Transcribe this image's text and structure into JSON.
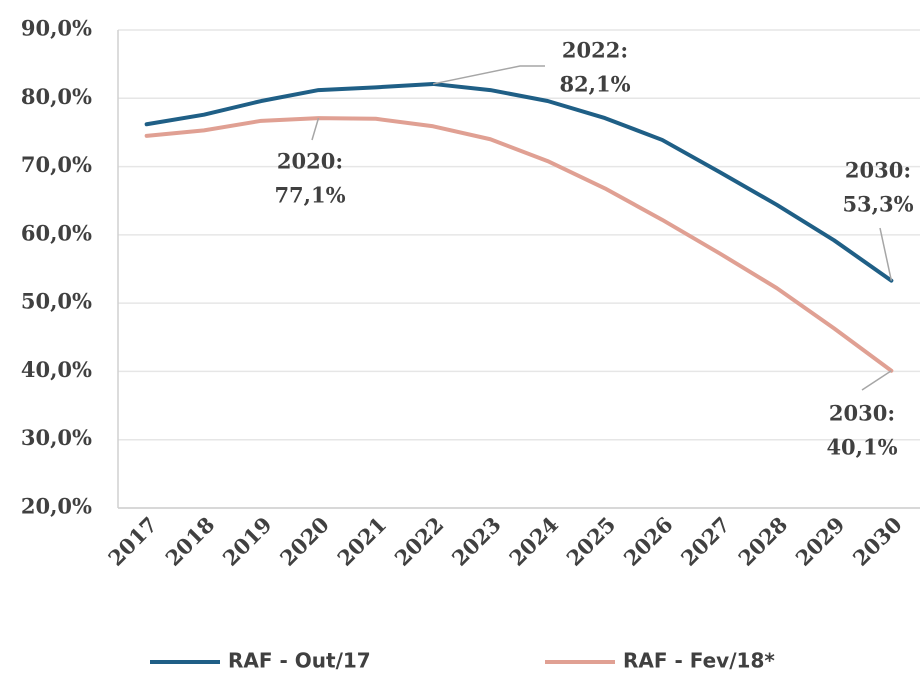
{
  "chart_data": {
    "type": "line",
    "categories": [
      "2017",
      "2018",
      "2019",
      "2020",
      "2021",
      "2022",
      "2023",
      "2024",
      "2025",
      "2026",
      "2027",
      "2028",
      "2029",
      "2030"
    ],
    "series": [
      {
        "name": "RAF - Out/17",
        "color": "#1f5f86",
        "values": [
          76.2,
          77.6,
          79.6,
          81.2,
          81.6,
          82.1,
          81.2,
          79.6,
          77.1,
          73.9,
          69.2,
          64.4,
          59.2,
          53.3
        ]
      },
      {
        "name": "RAF - Fev/18*",
        "color": "#e0a093",
        "values": [
          74.5,
          75.3,
          76.7,
          77.1,
          77.0,
          75.9,
          74.0,
          70.8,
          66.8,
          62.2,
          57.3,
          52.2,
          46.3,
          40.1
        ]
      }
    ],
    "ylim": [
      20,
      90
    ],
    "yticks": [
      {
        "value": 20,
        "label": "20,0%"
      },
      {
        "value": 30,
        "label": "30,0%"
      },
      {
        "value": 40,
        "label": "40,0%"
      },
      {
        "value": 50,
        "label": "50,0%"
      },
      {
        "value": 60,
        "label": "60,0%"
      },
      {
        "value": 70,
        "label": "70,0%"
      },
      {
        "value": 80,
        "label": "80,0%"
      },
      {
        "value": 90,
        "label": "90,0%"
      }
    ],
    "grid": true,
    "legend": "bottom",
    "annotations": [
      {
        "lines": [
          "2022:",
          "82,1%"
        ]
      },
      {
        "lines": [
          "2020:",
          "77,1%"
        ]
      },
      {
        "lines": [
          "2030:",
          "53,3%"
        ]
      },
      {
        "lines": [
          "2030:",
          "40,1%"
        ]
      }
    ]
  }
}
